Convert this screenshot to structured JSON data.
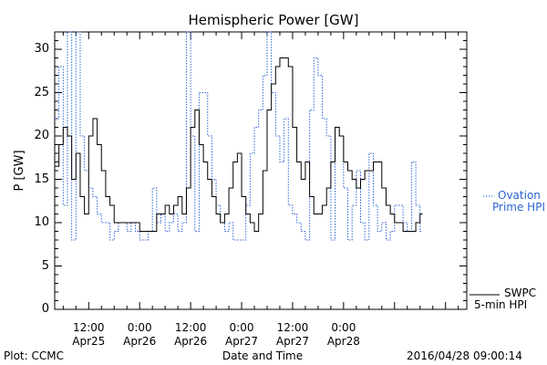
{
  "chart_data": {
    "type": "line",
    "title": "Hemispheric Power [GW]",
    "xlabel": "Date and Time",
    "ylabel": "P [GW]",
    "ylim": [
      0,
      32
    ],
    "xlim_hours": [
      4,
      101
    ],
    "yticks": [
      0,
      5,
      10,
      15,
      20,
      25,
      30
    ],
    "x_ticks": [
      {
        "time": "12:00",
        "date": "Apr25",
        "h": 12
      },
      {
        "time": "0:00",
        "date": "Apr26",
        "h": 24
      },
      {
        "time": "12:00",
        "date": "Apr26",
        "h": 36
      },
      {
        "time": "0:00",
        "date": "Apr27",
        "h": 48
      },
      {
        "time": "12:00",
        "date": "Apr27",
        "h": 60
      },
      {
        "time": "0:00",
        "date": "Apr28",
        "h": 72
      }
    ],
    "grid": false,
    "legend": [
      {
        "name": "SWPC",
        "name2": "5-min HPI",
        "color": "#000000",
        "style": "solid"
      },
      {
        "name": "Ovation",
        "name2": "Prime HPI",
        "color": "#2b63d6",
        "style": "dotted"
      }
    ],
    "series": [
      {
        "name": "SWPC 5-min HPI",
        "color": "#000000",
        "style": "solid",
        "points": [
          [
            4,
            16.5
          ],
          [
            5,
            19
          ],
          [
            6,
            21
          ],
          [
            7,
            20
          ],
          [
            8,
            15
          ],
          [
            9,
            18
          ],
          [
            10,
            13
          ],
          [
            11,
            11
          ],
          [
            12,
            20
          ],
          [
            13,
            22
          ],
          [
            14,
            19
          ],
          [
            15,
            16
          ],
          [
            16,
            13
          ],
          [
            17,
            12
          ],
          [
            18,
            10
          ],
          [
            19,
            10
          ],
          [
            20,
            10
          ],
          [
            21,
            10
          ],
          [
            22,
            10
          ],
          [
            23,
            10
          ],
          [
            24,
            9
          ],
          [
            25,
            9
          ],
          [
            26,
            9
          ],
          [
            27,
            9
          ],
          [
            28,
            11
          ],
          [
            29,
            11
          ],
          [
            30,
            12
          ],
          [
            31,
            11
          ],
          [
            32,
            12
          ],
          [
            33,
            13
          ],
          [
            34,
            11
          ],
          [
            35,
            14
          ],
          [
            36,
            21
          ],
          [
            37,
            23
          ],
          [
            38,
            19
          ],
          [
            39,
            17
          ],
          [
            40,
            15
          ],
          [
            41,
            13
          ],
          [
            42,
            11
          ],
          [
            43,
            10
          ],
          [
            44,
            11
          ],
          [
            45,
            14
          ],
          [
            46,
            17
          ],
          [
            47,
            18
          ],
          [
            48,
            13
          ],
          [
            49,
            11
          ],
          [
            50,
            10
          ],
          [
            51,
            9
          ],
          [
            52,
            11
          ],
          [
            53,
            16
          ],
          [
            54,
            23
          ],
          [
            55,
            26
          ],
          [
            56,
            28
          ],
          [
            57,
            29
          ],
          [
            58,
            29
          ],
          [
            59,
            28
          ],
          [
            60,
            21
          ],
          [
            61,
            17
          ],
          [
            62,
            15
          ],
          [
            63,
            17
          ],
          [
            64,
            13
          ],
          [
            65,
            11
          ],
          [
            66,
            11
          ],
          [
            67,
            12
          ],
          [
            68,
            14
          ],
          [
            69,
            17
          ],
          [
            70,
            21
          ],
          [
            71,
            20
          ],
          [
            72,
            17
          ],
          [
            73,
            16
          ],
          [
            74,
            15
          ],
          [
            75,
            14
          ],
          [
            76,
            15
          ],
          [
            77,
            16
          ],
          [
            78,
            16
          ],
          [
            79,
            17
          ],
          [
            80,
            17
          ],
          [
            81,
            14
          ],
          [
            82,
            12
          ],
          [
            83,
            11
          ],
          [
            84,
            10
          ],
          [
            85,
            10
          ],
          [
            86,
            9
          ],
          [
            87,
            9
          ],
          [
            88,
            9
          ],
          [
            89,
            10
          ],
          [
            90,
            11
          ]
        ]
      },
      {
        "name": "Ovation Prime HPI",
        "color": "#2b63d6",
        "style": "dotted",
        "points": [
          [
            4,
            22
          ],
          [
            5,
            28
          ],
          [
            6,
            12
          ],
          [
            7,
            32
          ],
          [
            8,
            8
          ],
          [
            9,
            32
          ],
          [
            10,
            20
          ],
          [
            11,
            16
          ],
          [
            12,
            14
          ],
          [
            13,
            13
          ],
          [
            14,
            11
          ],
          [
            15,
            10
          ],
          [
            16,
            10
          ],
          [
            17,
            8
          ],
          [
            18,
            9
          ],
          [
            19,
            10
          ],
          [
            20,
            10
          ],
          [
            21,
            9
          ],
          [
            22,
            10
          ],
          [
            23,
            9
          ],
          [
            24,
            8
          ],
          [
            25,
            8
          ],
          [
            26,
            9
          ],
          [
            27,
            14
          ],
          [
            28,
            10
          ],
          [
            29,
            11
          ],
          [
            30,
            9
          ],
          [
            31,
            10
          ],
          [
            32,
            11
          ],
          [
            33,
            9
          ],
          [
            34,
            10
          ],
          [
            35,
            32
          ],
          [
            36,
            20
          ],
          [
            37,
            9
          ],
          [
            38,
            25
          ],
          [
            39,
            25
          ],
          [
            40,
            20
          ],
          [
            41,
            15
          ],
          [
            42,
            12
          ],
          [
            43,
            10
          ],
          [
            44,
            9
          ],
          [
            45,
            10
          ],
          [
            46,
            8
          ],
          [
            47,
            8
          ],
          [
            48,
            8
          ],
          [
            49,
            12
          ],
          [
            50,
            18
          ],
          [
            51,
            21
          ],
          [
            52,
            23
          ],
          [
            53,
            27
          ],
          [
            54,
            32
          ],
          [
            55,
            25
          ],
          [
            56,
            20
          ],
          [
            57,
            17
          ],
          [
            58,
            22
          ],
          [
            59,
            12
          ],
          [
            60,
            11
          ],
          [
            61,
            10
          ],
          [
            62,
            9
          ],
          [
            63,
            8
          ],
          [
            64,
            23
          ],
          [
            65,
            29
          ],
          [
            66,
            27
          ],
          [
            67,
            22
          ],
          [
            68,
            20
          ],
          [
            69,
            8
          ],
          [
            70,
            21
          ],
          [
            71,
            20
          ],
          [
            72,
            14
          ],
          [
            73,
            8
          ],
          [
            74,
            12
          ],
          [
            75,
            16
          ],
          [
            76,
            10
          ],
          [
            77,
            8
          ],
          [
            78,
            18
          ],
          [
            79,
            12
          ],
          [
            80,
            9
          ],
          [
            81,
            10
          ],
          [
            82,
            8
          ],
          [
            83,
            9
          ],
          [
            84,
            12
          ],
          [
            85,
            12
          ],
          [
            86,
            10
          ],
          [
            87,
            9
          ],
          [
            88,
            17
          ],
          [
            89,
            12
          ],
          [
            90,
            9
          ]
        ]
      }
    ]
  },
  "footer": {
    "plot_credit": "Plot: CCMC",
    "timestamp": "2016/04/28 09:00:14"
  }
}
